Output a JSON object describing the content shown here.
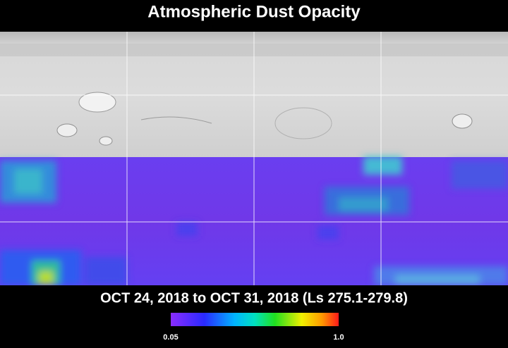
{
  "title": "Atmospheric Dust Opacity",
  "date_range": "OCT 24, 2018 to OCT 31, 2018 (Ls 275.1-279.8)",
  "colorbar": {
    "ticks": [
      0.05,
      {
        "value": 1,
        "label": "1.0"
      }
    ]
  }
}
